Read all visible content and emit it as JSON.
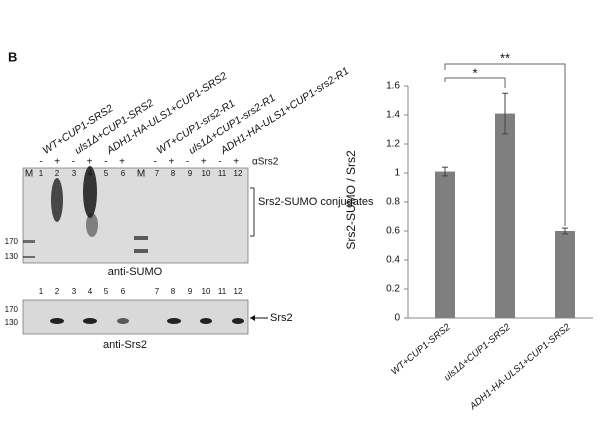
{
  "panel_label": "B",
  "blot": {
    "lane_headers": [
      "WT+CUP1-SRS2",
      "uls1Δ+CUP1-SRS2",
      "ADH1-HA-ULS1+CUP1-SRS2",
      "WT+CUP1-srs2-R1",
      "uls1Δ+CUP1-srs2-R1",
      "ADH1-HA-ULS1+CUP1-srs2-R1"
    ],
    "signs": [
      "-",
      "+",
      "-",
      "+",
      "-",
      "+",
      "-",
      "+",
      "-",
      "+",
      "-",
      "+"
    ],
    "antibody": "αSrs2",
    "upper_lanes": [
      "M",
      "1",
      "2",
      "3",
      "4",
      "5",
      "6",
      "M",
      "7",
      "8",
      "9",
      "10",
      "11",
      "12"
    ],
    "upper_markers": [
      "170",
      "130"
    ],
    "upper_annotation": "Srs2-SUMO conjugates",
    "upper_caption": "anti-SUMO",
    "lower_lanes": [
      "1",
      "2",
      "3",
      "4",
      "5",
      "6",
      "7",
      "8",
      "9",
      "10",
      "11",
      "12"
    ],
    "lower_markers": [
      "170",
      "130"
    ],
    "lower_annotation": "Srs2",
    "lower_caption": "anti-Srs2"
  },
  "chart_data": {
    "type": "bar",
    "ylabel": "Srs2-SUMO / Srs2",
    "categories": [
      "WT+CUP1-SRS2",
      "uls1Δ+CUP1-SRS2",
      "ADH1-HA-ULS1+CUP1-SRS2"
    ],
    "values": [
      1.01,
      1.41,
      0.6
    ],
    "errors": [
      0.03,
      0.14,
      0.02
    ],
    "color": "#7f7f7f",
    "ylim": [
      0,
      1.6
    ],
    "yticks": [
      0,
      0.2,
      0.4,
      0.6,
      0.8,
      1,
      1.2,
      1.4,
      1.6
    ],
    "annotations": [
      "*",
      "**"
    ]
  }
}
